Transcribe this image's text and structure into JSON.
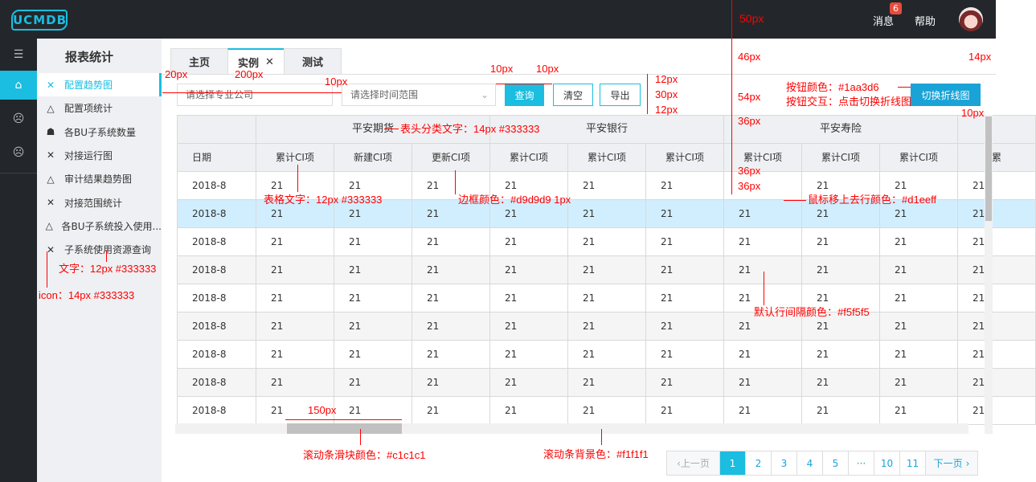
{
  "header": {
    "logo": "UCMDB",
    "messages": "消息",
    "message_count": "6",
    "help": "帮助"
  },
  "rail": {
    "icons": [
      "menu-toggle-icon",
      "home-icon",
      "face-icon",
      "face-icon"
    ]
  },
  "menu": {
    "title": "报表统计",
    "items": [
      {
        "label": "配置趋势图",
        "icon": "cluster-icon",
        "active": true
      },
      {
        "label": "配置项统计",
        "icon": "triangle-nodes-icon"
      },
      {
        "label": "各BU子系统数量",
        "icon": "group-icon"
      },
      {
        "label": "对接运行图",
        "icon": "cluster-icon"
      },
      {
        "label": "审计结果趋势图",
        "icon": "triangle-nodes-icon"
      },
      {
        "label": "对接范围统计",
        "icon": "cluster-icon"
      },
      {
        "label": "各BU子系统投入使用...",
        "icon": "triangle-nodes-icon"
      },
      {
        "label": "子系统使用资源查询",
        "icon": "cluster-icon"
      }
    ]
  },
  "tabs": [
    {
      "label": "主页"
    },
    {
      "label": "实例",
      "closable": true,
      "active": true
    },
    {
      "label": "测试"
    }
  ],
  "toolbar": {
    "company_placeholder": "请选择专业公司",
    "time_placeholder": "请选择时间范围",
    "query": "查询",
    "clear": "清空",
    "export": "导出",
    "switch": "切换折线图"
  },
  "colors": {
    "accent": "#1bbde0",
    "button": "#1aa3d6",
    "border": "#d9d9d9",
    "hover_row": "#d1eeff",
    "stripe_row": "#f5f5f5",
    "scroll_thumb": "#c1c1c1",
    "scroll_track": "#f1f1f1"
  },
  "table": {
    "date_header": "日期",
    "groups": [
      "平安期货",
      "平安银行",
      "平安寿险",
      ""
    ],
    "columns": [
      "累计CI项",
      "新建CI项",
      "更新CI项",
      "累计CI项",
      "累计CI项",
      "累计CI项",
      "累计CI项",
      "累计CI项",
      "累计CI项",
      "累"
    ],
    "rows": [
      [
        "2018-8",
        "21",
        "21",
        "21",
        "21",
        "21",
        "21",
        "",
        "21",
        "21",
        "21"
      ],
      [
        "2018-8",
        "21",
        "21",
        "21",
        "21",
        "21",
        "21",
        "21",
        "21",
        "21",
        "21"
      ],
      [
        "2018-8",
        "21",
        "21",
        "21",
        "21",
        "21",
        "21",
        "21",
        "21",
        "21",
        "21"
      ],
      [
        "2018-8",
        "21",
        "21",
        "21",
        "21",
        "21",
        "21",
        "21",
        "21",
        "21",
        "21"
      ],
      [
        "2018-8",
        "21",
        "21",
        "21",
        "21",
        "21",
        "21",
        "21",
        "21",
        "21",
        "21"
      ],
      [
        "2018-8",
        "21",
        "21",
        "21",
        "21",
        "21",
        "21",
        "21",
        "21",
        "21",
        "21"
      ],
      [
        "2018-8",
        "21",
        "21",
        "21",
        "21",
        "21",
        "21",
        "21",
        "21",
        "21",
        "21"
      ],
      [
        "2018-8",
        "21",
        "21",
        "21",
        "21",
        "21",
        "21",
        "21",
        "21",
        "21",
        "21"
      ],
      [
        "2018-8",
        "21",
        "21",
        "21",
        "21",
        "21",
        "21",
        "21",
        "21",
        "21",
        "21"
      ]
    ],
    "hover_row": 1
  },
  "pagination": {
    "prev": "上一页",
    "pages": [
      "1",
      "2",
      "3",
      "4",
      "5",
      "···",
      "10",
      "11"
    ],
    "current": "1",
    "next": "下一页"
  },
  "annotations": {
    "h50": "50px",
    "h46": "46px",
    "h54": "54px",
    "h36a": "36px",
    "h36b": "36px",
    "h36c": "36px",
    "w20": "20px",
    "w200": "200px",
    "w10a": "10px",
    "w10b": "10px",
    "w10c": "10px",
    "v12a": "12px",
    "v30": "30px",
    "v12b": "12px",
    "btn_color": "按钮颜色：#1aa3d6",
    "btn_action": "按钮交互：点击切换折线图",
    "w14": "14px",
    "w10d": "10px",
    "head_text": "表头分类文字：14px   #333333",
    "cell_text": "表格文字：12px   #333333",
    "border": "边框颜色：#d9d9d9    1px",
    "hover": "鼠标移上去行颜色：#d1eeff",
    "stripe": "默认行间隔颜色：#f5f5f5",
    "menu_text": "文字：12px   #333333",
    "menu_icon": "icon：14px   #333333",
    "w150": "150px",
    "thumb": "滚动条滑块颜色：#c1c1c1",
    "track": "滚动条背景色：#f1f1f1"
  }
}
